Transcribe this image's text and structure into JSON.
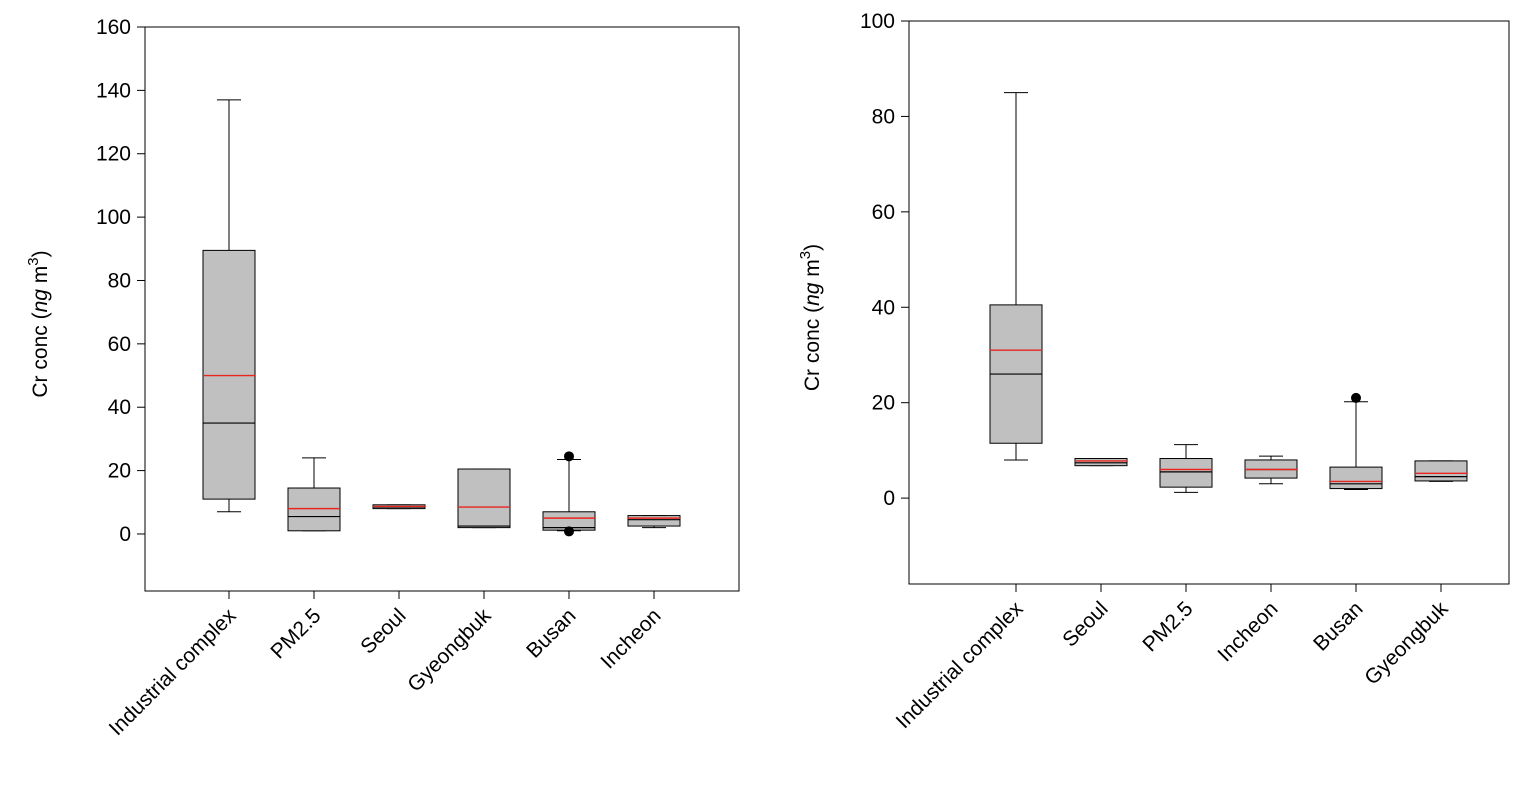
{
  "chart_data": [
    {
      "type": "box",
      "ylabel": {
        "prefix": "Cr conc (",
        "unit_italic": "ng",
        "unit_rest": " m",
        "sup": "3",
        "suffix": ")"
      },
      "ylim": [
        -18,
        160
      ],
      "yticks": [
        0,
        20,
        40,
        60,
        80,
        100,
        120,
        140,
        160
      ],
      "categories": [
        "Industrial complex",
        "PM2.5",
        "Seoul",
        "Gyeongbuk",
        "Busan",
        "Incheon"
      ],
      "boxes": [
        {
          "whisker_low": 7,
          "q1": 11,
          "median": 35,
          "q3": 89.5,
          "whisker_high": 137,
          "mean": 50,
          "outliers": []
        },
        {
          "whisker_low": 1,
          "q1": 1,
          "median": 5.5,
          "q3": 14.5,
          "whisker_high": 24,
          "mean": 8,
          "outliers": []
        },
        {
          "whisker_low": 8,
          "q1": 8,
          "median": 8.5,
          "q3": 9.2,
          "whisker_high": 9.2,
          "mean": 8.7,
          "outliers": []
        },
        {
          "whisker_low": 2,
          "q1": 2,
          "median": 2.5,
          "q3": 20.5,
          "whisker_high": 20.5,
          "mean": 8.5,
          "outliers": []
        },
        {
          "whisker_low": 1,
          "q1": 1.2,
          "median": 2,
          "q3": 7,
          "whisker_high": 23.5,
          "mean": 5,
          "outliers": [
            24.5,
            0.8
          ]
        },
        {
          "whisker_low": 2,
          "q1": 2.5,
          "median": 4.5,
          "q3": 5.8,
          "whisker_high": 5.8,
          "mean": 5,
          "outliers": []
        }
      ]
    },
    {
      "type": "box",
      "ylabel": {
        "prefix": "Cr conc (",
        "unit_italic": "ng",
        "unit_rest": " m",
        "sup": "3",
        "suffix": ")"
      },
      "ylim": [
        -18,
        100
      ],
      "yticks": [
        0,
        20,
        40,
        60,
        80,
        100
      ],
      "categories": [
        "Industrial complex",
        "Seoul",
        "PM2.5",
        "Incheon",
        "Busan",
        "Gyeongbuk"
      ],
      "boxes": [
        {
          "whisker_low": 8,
          "q1": 11.5,
          "median": 26,
          "q3": 40.5,
          "whisker_high": 85,
          "mean": 31,
          "outliers": []
        },
        {
          "whisker_low": 6.8,
          "q1": 6.8,
          "median": 7.4,
          "q3": 8.3,
          "whisker_high": 8.3,
          "mean": 7.8,
          "outliers": []
        },
        {
          "whisker_low": 1.2,
          "q1": 2.3,
          "median": 5.5,
          "q3": 8.3,
          "whisker_high": 11.2,
          "mean": 6,
          "outliers": []
        },
        {
          "whisker_low": 3,
          "q1": 4.2,
          "median": 6,
          "q3": 8,
          "whisker_high": 8.8,
          "mean": 6,
          "outliers": []
        },
        {
          "whisker_low": 1.8,
          "q1": 2,
          "median": 3,
          "q3": 6.5,
          "whisker_high": 20.2,
          "mean": 3.5,
          "outliers": [
            21
          ]
        },
        {
          "whisker_low": 3.5,
          "q1": 3.6,
          "median": 4.5,
          "q3": 7.8,
          "whisker_high": 7.8,
          "mean": 5.2,
          "outliers": []
        }
      ]
    }
  ],
  "colors": {
    "box_fill": "#c0c0c0",
    "mean_line": "#e8251f",
    "stroke": "#000000"
  }
}
